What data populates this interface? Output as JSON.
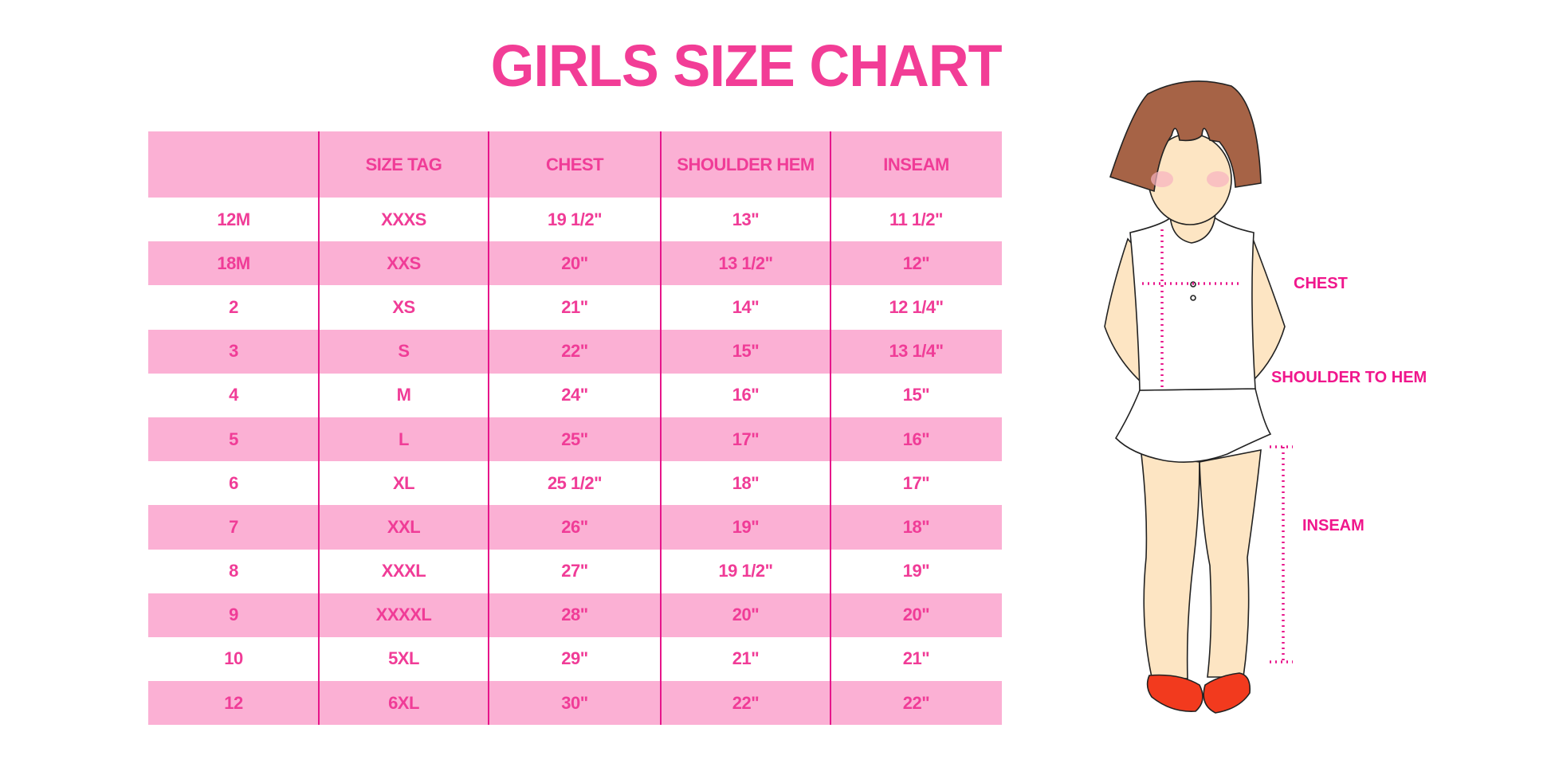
{
  "title": "GIRLS SIZE CHART",
  "colors": {
    "header_bg": "#fbb0d4",
    "text": "#f03c97",
    "divider": "#e6158a",
    "label": "#f0168c"
  },
  "table": {
    "headers": [
      "",
      "SIZE TAG",
      "CHEST",
      "SHOULDER HEM",
      "INSEAM"
    ],
    "rows": [
      [
        "12M",
        "XXXS",
        "19 1/2\"",
        "13\"",
        "11 1/2\""
      ],
      [
        "18M",
        "XXS",
        "20\"",
        "13 1/2\"",
        "12\""
      ],
      [
        "2",
        "XS",
        "21\"",
        "14\"",
        "12 1/4\""
      ],
      [
        "3",
        "S",
        "22\"",
        "15\"",
        "13 1/4\""
      ],
      [
        "4",
        "M",
        "24\"",
        "16\"",
        "15\""
      ],
      [
        "5",
        "L",
        "25\"",
        "17\"",
        "16\""
      ],
      [
        "6",
        "XL",
        "25 1/2\"",
        "18\"",
        "17\""
      ],
      [
        "7",
        "XXL",
        "26\"",
        "19\"",
        "18\""
      ],
      [
        "8",
        "XXXL",
        "27\"",
        "19 1/2\"",
        "19\""
      ],
      [
        "9",
        "XXXXL",
        "28\"",
        "20\"",
        "20\""
      ],
      [
        "10",
        "5XL",
        "29\"",
        "21\"",
        "21\""
      ],
      [
        "12",
        "6XL",
        "30\"",
        "22\"",
        "22\""
      ]
    ]
  },
  "figure": {
    "labels": {
      "chest": "CHEST",
      "shoulder": "SHOULDER TO HEM",
      "inseam": "INSEAM"
    }
  }
}
